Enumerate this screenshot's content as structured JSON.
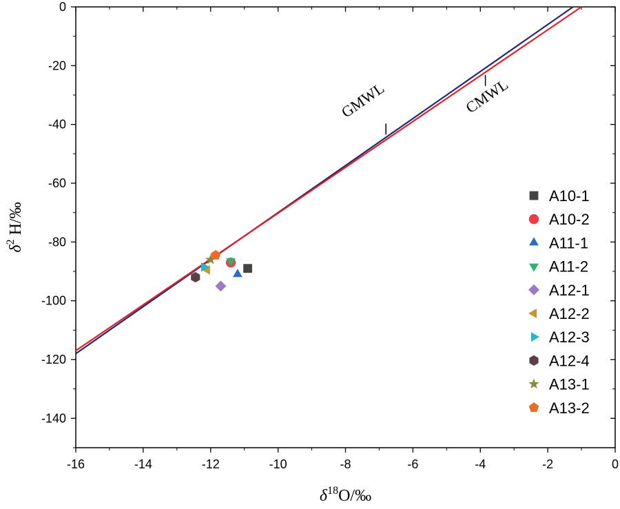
{
  "chart_data": {
    "type": "scatter",
    "xlabel": {
      "symbol": "δ",
      "sup": "18",
      "rest": "O/‰"
    },
    "ylabel": {
      "symbol": "δ",
      "sup": "2",
      "rest": " H/‰"
    },
    "xlim": [
      -16,
      0
    ],
    "ylim": [
      -150,
      0
    ],
    "xticks": [
      -16,
      -14,
      -12,
      -10,
      -8,
      -6,
      -4,
      -2,
      0
    ],
    "yticks": [
      0,
      -20,
      -40,
      -60,
      -80,
      -100,
      -120,
      -140
    ],
    "grid": false,
    "legend_position": "right",
    "lines": [
      {
        "name": "GMWL",
        "color": "#1f2a6e",
        "slope": 8,
        "intercept": 10,
        "x": [
          -16,
          -1.25
        ]
      },
      {
        "name": "CMWL",
        "color": "#e0202a",
        "slope": 7.8,
        "intercept": 7.8,
        "x": [
          -16,
          -1.0
        ]
      }
    ],
    "line_annotations": [
      {
        "label": "GMWL",
        "line": "GMWL",
        "anchor_x": -6.8
      },
      {
        "label": "CMWL",
        "line": "CMWL",
        "anchor_x": -3.85
      }
    ],
    "series": [
      {
        "name": "A10-1",
        "marker": "square",
        "color": "#444444",
        "points": [
          [
            -10.9,
            -89
          ]
        ]
      },
      {
        "name": "A10-2",
        "marker": "circle",
        "color": "#ee3b4a",
        "points": [
          [
            -11.4,
            -87
          ]
        ]
      },
      {
        "name": "A11-1",
        "marker": "triangle-up",
        "color": "#2b6fc4",
        "points": [
          [
            -11.2,
            -91
          ]
        ]
      },
      {
        "name": "A11-2",
        "marker": "triangle-down",
        "color": "#2fb26a",
        "points": [
          [
            -11.4,
            -86.5
          ]
        ]
      },
      {
        "name": "A12-1",
        "marker": "diamond",
        "color": "#9a7cc4",
        "points": [
          [
            -11.7,
            -95
          ]
        ]
      },
      {
        "name": "A12-2",
        "marker": "triangle-left",
        "color": "#c8962e",
        "points": [
          [
            -12.1,
            -89.5
          ]
        ]
      },
      {
        "name": "A12-3",
        "marker": "triangle-right",
        "color": "#22b8c8",
        "points": [
          [
            -12.2,
            -88.5
          ]
        ]
      },
      {
        "name": "A12-4",
        "marker": "hexagon",
        "color": "#5a3f46",
        "points": [
          [
            -12.45,
            -92
          ]
        ]
      },
      {
        "name": "A13-1",
        "marker": "star",
        "color": "#8a8a3a",
        "points": [
          [
            -12.0,
            -86
          ]
        ]
      },
      {
        "name": "A13-2",
        "marker": "pentagon",
        "color": "#ee6a28",
        "points": [
          [
            -11.85,
            -84.5
          ]
        ]
      }
    ]
  }
}
